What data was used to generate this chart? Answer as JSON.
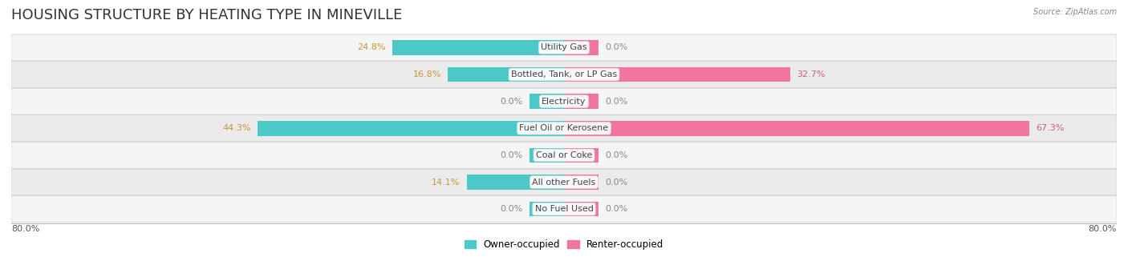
{
  "title": "HOUSING STRUCTURE BY HEATING TYPE IN MINEVILLE",
  "source": "Source: ZipAtlas.com",
  "categories": [
    "Utility Gas",
    "Bottled, Tank, or LP Gas",
    "Electricity",
    "Fuel Oil or Kerosene",
    "Coal or Coke",
    "All other Fuels",
    "No Fuel Used"
  ],
  "owner_values": [
    24.8,
    16.8,
    0.0,
    44.3,
    0.0,
    14.1,
    0.0
  ],
  "renter_values": [
    0.0,
    32.7,
    0.0,
    67.3,
    0.0,
    0.0,
    0.0
  ],
  "owner_color": "#4DC8C8",
  "renter_color": "#F075A0",
  "owner_label": "Owner-occupied",
  "renter_label": "Renter-occupied",
  "xlim": 80.0,
  "min_bar": 5.0,
  "axis_label_left": "80.0%",
  "axis_label_right": "80.0%",
  "background_color": "#FFFFFF",
  "row_bg_even": "#F5F5F5",
  "row_bg_odd": "#EBEBEB",
  "title_fontsize": 13,
  "label_fontsize": 8,
  "value_fontsize": 8,
  "bar_height": 0.55,
  "owner_val_color": "#C8963C",
  "renter_val_color": "#C8636E",
  "zero_val_color": "#888888",
  "center_label_color": "#444444"
}
